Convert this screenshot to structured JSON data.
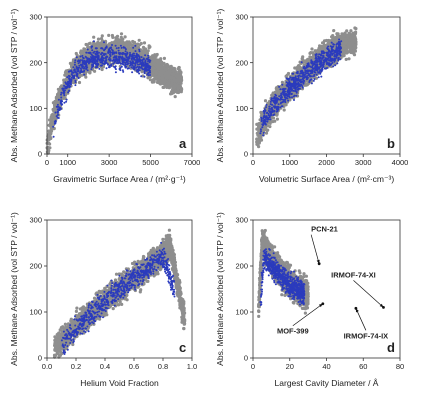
{
  "chart_data": [
    {
      "type": "scatter",
      "panel": "a",
      "xlabel": "Gravimetric Surface Area / (m²·g⁻¹)",
      "ylabel": "Abs. Methane Adsorbed (vol STP / vol⁻¹)",
      "xlim": [
        0,
        7000
      ],
      "ylim": [
        0,
        300
      ],
      "xticks": [
        0,
        1000,
        3000,
        5000,
        7000
      ],
      "yticks": [
        0,
        100,
        200,
        300
      ],
      "series": [
        {
          "color": "#8e8e8e",
          "role": "background",
          "values": [
            [
              0,
              15
            ],
            [
              200,
              60
            ],
            [
              500,
              110
            ],
            [
              1000,
              160
            ],
            [
              1500,
              190
            ],
            [
              2000,
              210
            ],
            [
              2500,
              220
            ],
            [
              3000,
              225
            ],
            [
              3500,
              225
            ],
            [
              4000,
              220
            ],
            [
              4500,
              210
            ],
            [
              5000,
              195
            ],
            [
              5500,
              180
            ],
            [
              6000,
              165
            ],
            [
              6500,
              155
            ]
          ]
        },
        {
          "color": "#2b3bbd",
          "role": "highlight",
          "values": [
            [
              300,
              60
            ],
            [
              700,
              120
            ],
            [
              1200,
              170
            ],
            [
              1700,
              195
            ],
            [
              2200,
              210
            ],
            [
              2800,
              215
            ],
            [
              3500,
              210
            ],
            [
              4200,
              205
            ],
            [
              5000,
              190
            ]
          ]
        }
      ]
    },
    {
      "type": "scatter",
      "panel": "b",
      "xlabel": "Volumetric Surface Area / (m²·cm⁻³)",
      "ylabel": "Abs. Methane Adsorbed (vol STP / vol⁻¹)",
      "xlim": [
        0,
        4000
      ],
      "ylim": [
        0,
        300
      ],
      "xticks": [
        0,
        1000,
        2000,
        3000,
        4000
      ],
      "yticks": [
        0,
        100,
        200,
        300
      ],
      "series": [
        {
          "color": "#8e8e8e",
          "role": "background",
          "values": [
            [
              100,
              40
            ],
            [
              500,
              100
            ],
            [
              1000,
              145
            ],
            [
              1500,
              185
            ],
            [
              2000,
              220
            ],
            [
              2500,
              240
            ],
            [
              2800,
              245
            ]
          ]
        },
        {
          "color": "#2b3bbd",
          "role": "highlight",
          "values": [
            [
              200,
              60
            ],
            [
              600,
              110
            ],
            [
              1000,
              145
            ],
            [
              1500,
              180
            ],
            [
              2000,
              210
            ],
            [
              2400,
              230
            ]
          ]
        }
      ]
    },
    {
      "type": "scatter",
      "panel": "c",
      "xlabel": "Helium Void Fraction",
      "ylabel": "Abs. Methane Adsorbed (vol STP / vol⁻¹)",
      "xlim": [
        0,
        1.0
      ],
      "ylim": [
        0,
        300
      ],
      "xticks": [
        0.0,
        0.2,
        0.4,
        0.6,
        0.8,
        1.0
      ],
      "yticks": [
        0,
        100,
        200,
        300
      ],
      "series": [
        {
          "color": "#8e8e8e",
          "role": "background",
          "values": [
            [
              0.05,
              20
            ],
            [
              0.2,
              70
            ],
            [
              0.4,
              125
            ],
            [
              0.6,
              175
            ],
            [
              0.8,
              225
            ],
            [
              0.85,
              245
            ],
            [
              0.9,
              160
            ],
            [
              0.95,
              80
            ]
          ]
        },
        {
          "color": "#2b3bbd",
          "role": "highlight",
          "values": [
            [
              0.1,
              30
            ],
            [
              0.3,
              95
            ],
            [
              0.5,
              150
            ],
            [
              0.7,
              195
            ],
            [
              0.8,
              220
            ],
            [
              0.88,
              150
            ]
          ]
        }
      ]
    },
    {
      "type": "scatter",
      "panel": "d",
      "xlabel": "Largest Cavity Diameter / Å",
      "ylabel": "Abs. Methane Adsorbed (vol STP / vol⁻¹)",
      "xlim": [
        0,
        80
      ],
      "ylim": [
        0,
        300
      ],
      "xticks": [
        0,
        20,
        40,
        60,
        80
      ],
      "yticks": [
        0,
        100,
        200,
        300
      ],
      "series": [
        {
          "color": "#8e8e8e",
          "role": "background",
          "values": [
            [
              3,
              100
            ],
            [
              5,
              250
            ],
            [
              8,
              230
            ],
            [
              12,
              200
            ],
            [
              16,
              180
            ],
            [
              20,
              165
            ],
            [
              25,
              150
            ],
            [
              30,
              135
            ]
          ]
        },
        {
          "color": "#2b3bbd",
          "role": "highlight",
          "values": [
            [
              4,
              120
            ],
            [
              6,
              220
            ],
            [
              10,
              200
            ],
            [
              14,
              185
            ],
            [
              20,
              160
            ],
            [
              28,
              140
            ]
          ]
        }
      ],
      "annotations": [
        {
          "text": "PCN-21",
          "x": 36,
          "y": 205
        },
        {
          "text": "IRMOF-74-XI",
          "x": 71,
          "y": 110
        },
        {
          "text": "MOF-399",
          "x": 38,
          "y": 118
        },
        {
          "text": "IRMOF-74-IX",
          "x": 56,
          "y": 108
        }
      ]
    }
  ],
  "panel_labels": [
    "a",
    "b",
    "c",
    "d"
  ],
  "colors": {
    "background_points": "#8e8e8e",
    "highlight_points": "#2b3bbd",
    "axis": "#333333"
  }
}
